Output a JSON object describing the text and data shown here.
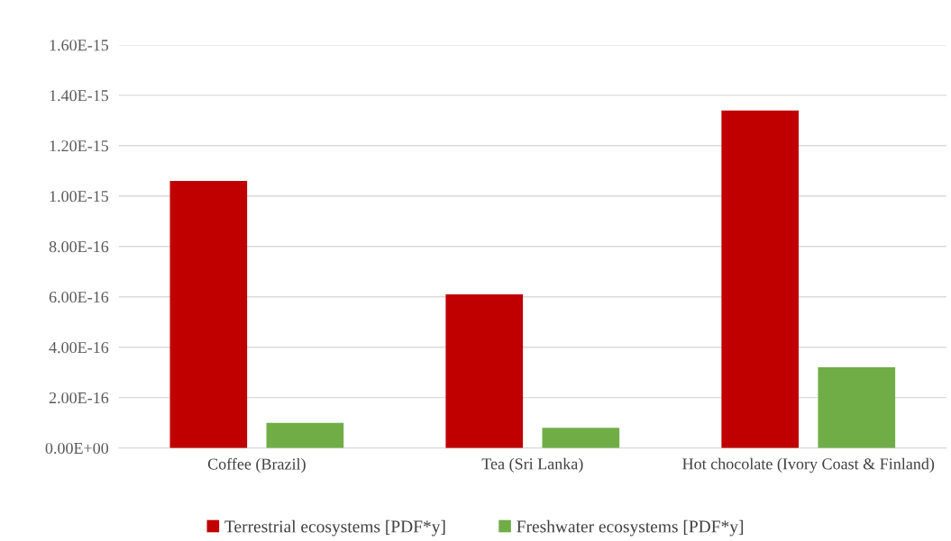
{
  "chart_data": {
    "type": "bar",
    "categories": [
      "Coffee (Brazil)",
      "Tea (Sri Lanka)",
      "Hot chocolate (Ivory Coast & Finland)"
    ],
    "series": [
      {
        "name": "Terrestrial ecosystems [PDF*y]",
        "color": "#c00000",
        "values": [
          1.06e-15,
          6.1e-16,
          1.34e-15
        ]
      },
      {
        "name": "Freshwater ecosystems [PDF*y]",
        "color": "#70ad47",
        "values": [
          1e-16,
          8e-17,
          3.2e-16
        ]
      }
    ],
    "ylim": [
      0,
      1.6e-15
    ],
    "yticks": [
      {
        "value": 0,
        "label": "0.00E+00"
      },
      {
        "value": 2e-16,
        "label": "2.00E-16"
      },
      {
        "value": 4e-16,
        "label": "4.00E-16"
      },
      {
        "value": 6e-16,
        "label": "6.00E-16"
      },
      {
        "value": 8e-16,
        "label": "8.00E-16"
      },
      {
        "value": 1e-15,
        "label": "1.00E-15"
      },
      {
        "value": 1.2e-15,
        "label": "1.20E-15"
      },
      {
        "value": 1.4e-15,
        "label": "1.40E-15"
      },
      {
        "value": 1.6e-15,
        "label": "1.60E-15"
      }
    ],
    "grid": "y",
    "legend": "bottom"
  }
}
